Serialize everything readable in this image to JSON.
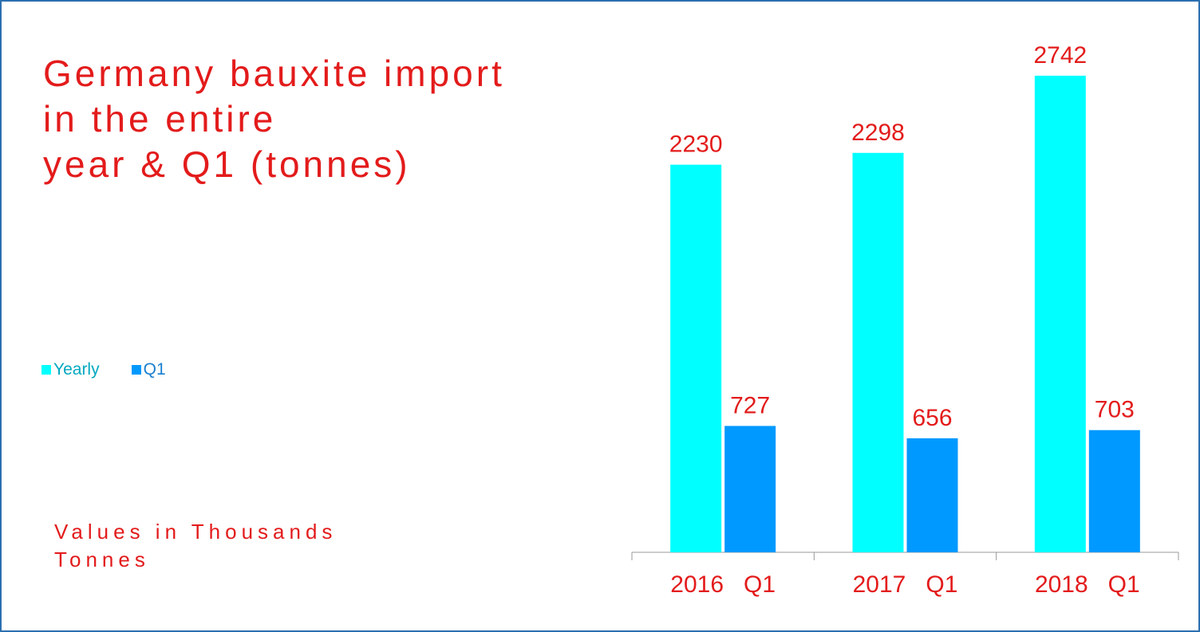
{
  "chart_data": {
    "type": "bar",
    "title": "Germany bauxite import\nin the entire\nyear & Q1 (tonnes)",
    "note": "Values in Thousands\nTonnes",
    "categories": [
      "2016   Q1",
      "2017   Q1",
      "2018   Q1"
    ],
    "series": [
      {
        "name": "Yearly",
        "color": "#00ffff",
        "values": [
          2230,
          2298,
          2742
        ]
      },
      {
        "name": "Q1",
        "color": "#0099ff",
        "values": [
          727,
          656,
          703
        ]
      }
    ],
    "label_color": "#e31b1b"
  }
}
